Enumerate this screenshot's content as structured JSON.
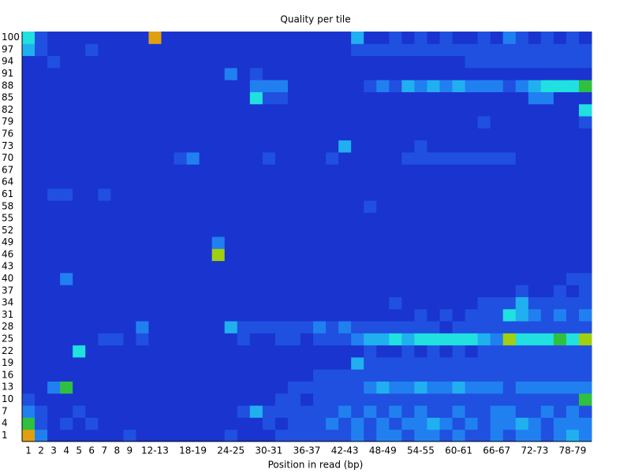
{
  "chart_data": {
    "type": "heatmap",
    "title": "Quality per tile",
    "x_label": "Position in read (bp)",
    "categories": [
      "1",
      "2",
      "3",
      "4",
      "5",
      "6",
      "7",
      "8",
      "9",
      null,
      "12-13",
      null,
      null,
      "18-19",
      null,
      null,
      "24-25",
      null,
      null,
      "30-31",
      null,
      null,
      "36-37",
      null,
      null,
      "42-43",
      null,
      null,
      "48-49",
      null,
      null,
      "54-55",
      null,
      null,
      "60-61",
      null,
      null,
      "66-67",
      null,
      null,
      "72-73",
      null,
      null,
      "78-79",
      null
    ],
    "y_categories": [
      "1",
      "4",
      "7",
      "10",
      "13",
      "16",
      "19",
      "22",
      "25",
      "28",
      "31",
      "34",
      "37",
      "40",
      "43",
      "46",
      "49",
      "52",
      "55",
      "58",
      "61",
      "64",
      "67",
      "70",
      "73",
      "76",
      "79",
      "82",
      "85",
      "88",
      "91",
      "94",
      "97",
      "100"
    ],
    "zlim": [
      0,
      10
    ],
    "colorscale": [
      "#1020c0",
      "#1a34d0",
      "#2050e0",
      "#2080f0",
      "#20b0f0",
      "#20e0e0",
      "#30c040",
      "#a0d010",
      "#e0c000",
      "#e0a010",
      "#f07000"
    ],
    "values": [
      [
        9,
        3,
        1,
        1,
        1,
        1,
        1,
        1,
        2,
        1,
        1,
        1,
        1,
        1,
        1,
        1,
        2,
        1,
        1,
        1,
        2,
        2,
        2,
        2,
        2,
        2,
        3,
        2,
        3,
        3,
        2,
        3,
        3,
        2,
        3,
        2,
        2,
        3,
        2,
        3,
        3,
        2,
        3,
        4,
        3
      ],
      [
        6,
        2,
        1,
        2,
        1,
        2,
        1,
        1,
        1,
        1,
        1,
        1,
        1,
        1,
        1,
        1,
        1,
        1,
        1,
        2,
        1,
        2,
        2,
        2,
        3,
        2,
        3,
        2,
        3,
        2,
        3,
        3,
        4,
        3,
        2,
        3,
        2,
        3,
        3,
        4,
        3,
        2,
        3,
        3,
        3
      ],
      [
        3,
        2,
        1,
        1,
        2,
        1,
        1,
        1,
        1,
        1,
        1,
        1,
        1,
        1,
        1,
        1,
        1,
        2,
        4,
        2,
        2,
        2,
        2,
        2,
        2,
        3,
        2,
        3,
        2,
        3,
        2,
        3,
        2,
        2,
        3,
        2,
        2,
        3,
        3,
        2,
        2,
        3,
        2,
        3,
        2
      ],
      [
        2,
        1,
        1,
        1,
        1,
        1,
        1,
        1,
        1,
        1,
        1,
        1,
        1,
        1,
        1,
        1,
        1,
        1,
        1,
        1,
        2,
        2,
        1,
        2,
        2,
        2,
        2,
        2,
        2,
        2,
        2,
        2,
        2,
        2,
        2,
        2,
        2,
        2,
        2,
        2,
        2,
        2,
        2,
        2,
        6
      ],
      [
        1,
        1,
        3,
        6,
        1,
        1,
        1,
        1,
        1,
        1,
        1,
        1,
        1,
        1,
        1,
        1,
        1,
        1,
        1,
        1,
        1,
        2,
        2,
        2,
        2,
        2,
        2,
        3,
        4,
        3,
        3,
        4,
        3,
        3,
        4,
        3,
        3,
        3,
        2,
        3,
        3,
        3,
        3,
        3,
        3
      ],
      [
        1,
        1,
        1,
        1,
        1,
        1,
        1,
        1,
        1,
        1,
        1,
        1,
        1,
        1,
        1,
        1,
        1,
        1,
        1,
        1,
        1,
        1,
        1,
        2,
        2,
        2,
        2,
        2,
        2,
        2,
        2,
        2,
        2,
        2,
        2,
        2,
        2,
        2,
        2,
        2,
        2,
        2,
        2,
        2,
        2
      ],
      [
        1,
        1,
        1,
        1,
        1,
        1,
        1,
        1,
        1,
        1,
        1,
        1,
        1,
        1,
        1,
        1,
        1,
        1,
        1,
        1,
        1,
        1,
        1,
        1,
        1,
        1,
        4,
        2,
        2,
        2,
        2,
        2,
        2,
        2,
        2,
        2,
        2,
        2,
        2,
        2,
        2,
        2,
        2,
        2,
        2
      ],
      [
        1,
        1,
        1,
        1,
        5,
        1,
        1,
        1,
        1,
        1,
        1,
        1,
        1,
        1,
        1,
        1,
        1,
        1,
        1,
        1,
        1,
        1,
        1,
        1,
        1,
        1,
        1,
        2,
        1,
        1,
        2,
        1,
        2,
        1,
        2,
        1,
        2,
        2,
        2,
        2,
        2,
        2,
        2,
        2,
        2
      ],
      [
        1,
        1,
        1,
        1,
        1,
        1,
        2,
        2,
        1,
        2,
        1,
        1,
        1,
        1,
        1,
        1,
        1,
        2,
        1,
        1,
        2,
        2,
        1,
        2,
        2,
        2,
        3,
        4,
        4,
        5,
        4,
        5,
        5,
        5,
        5,
        5,
        4,
        3,
        7,
        5,
        5,
        5,
        6,
        5,
        7
      ],
      [
        1,
        1,
        1,
        1,
        1,
        1,
        1,
        1,
        1,
        3,
        1,
        1,
        1,
        1,
        1,
        1,
        4,
        2,
        2,
        2,
        2,
        2,
        2,
        3,
        2,
        3,
        2,
        2,
        2,
        2,
        2,
        2,
        2,
        1,
        2,
        2,
        2,
        2,
        2,
        2,
        2,
        2,
        2,
        2,
        2
      ],
      [
        1,
        1,
        1,
        1,
        1,
        1,
        1,
        1,
        1,
        1,
        1,
        1,
        1,
        1,
        1,
        1,
        1,
        1,
        1,
        1,
        1,
        1,
        1,
        1,
        1,
        1,
        1,
        1,
        1,
        1,
        1,
        2,
        1,
        2,
        1,
        2,
        2,
        2,
        5,
        4,
        3,
        2,
        3,
        2,
        3
      ],
      [
        1,
        1,
        1,
        1,
        1,
        1,
        1,
        1,
        1,
        1,
        1,
        1,
        1,
        1,
        1,
        1,
        1,
        1,
        1,
        1,
        1,
        1,
        1,
        1,
        1,
        1,
        1,
        1,
        1,
        2,
        1,
        1,
        1,
        1,
        1,
        1,
        2,
        2,
        2,
        4,
        2,
        2,
        2,
        2,
        2
      ],
      [
        1,
        1,
        1,
        1,
        1,
        1,
        1,
        1,
        1,
        1,
        1,
        1,
        1,
        1,
        1,
        1,
        1,
        1,
        1,
        1,
        1,
        1,
        1,
        1,
        1,
        1,
        1,
        1,
        1,
        1,
        1,
        1,
        1,
        1,
        1,
        1,
        1,
        1,
        1,
        2,
        1,
        1,
        2,
        1,
        2
      ],
      [
        1,
        1,
        1,
        3,
        1,
        1,
        1,
        1,
        1,
        1,
        1,
        1,
        1,
        1,
        1,
        1,
        1,
        1,
        1,
        1,
        1,
        1,
        1,
        1,
        1,
        1,
        1,
        1,
        1,
        1,
        1,
        1,
        1,
        1,
        1,
        1,
        1,
        1,
        1,
        1,
        1,
        1,
        1,
        2,
        2
      ],
      [
        1,
        1,
        1,
        1,
        1,
        1,
        1,
        1,
        1,
        1,
        1,
        1,
        1,
        1,
        1,
        1,
        1,
        1,
        1,
        1,
        1,
        1,
        1,
        1,
        1,
        1,
        1,
        1,
        1,
        1,
        1,
        1,
        1,
        1,
        1,
        1,
        1,
        1,
        1,
        1,
        1,
        1,
        1,
        1,
        1
      ],
      [
        1,
        1,
        1,
        1,
        1,
        1,
        1,
        1,
        1,
        1,
        1,
        1,
        1,
        1,
        1,
        7,
        1,
        1,
        1,
        1,
        1,
        1,
        1,
        1,
        1,
        1,
        1,
        1,
        1,
        1,
        1,
        1,
        1,
        1,
        1,
        1,
        1,
        1,
        1,
        1,
        1,
        1,
        1,
        1,
        1
      ],
      [
        1,
        1,
        1,
        1,
        1,
        1,
        1,
        1,
        1,
        1,
        1,
        1,
        1,
        1,
        1,
        3,
        1,
        1,
        1,
        1,
        1,
        1,
        1,
        1,
        1,
        1,
        1,
        1,
        1,
        1,
        1,
        1,
        1,
        1,
        1,
        1,
        1,
        1,
        1,
        1,
        1,
        1,
        1,
        1,
        1
      ],
      [
        1,
        1,
        1,
        1,
        1,
        1,
        1,
        1,
        1,
        1,
        1,
        1,
        1,
        1,
        1,
        1,
        1,
        1,
        1,
        1,
        1,
        1,
        1,
        1,
        1,
        1,
        1,
        1,
        1,
        1,
        1,
        1,
        1,
        1,
        1,
        1,
        1,
        1,
        1,
        1,
        1,
        1,
        1,
        1,
        1
      ],
      [
        1,
        1,
        1,
        1,
        1,
        1,
        1,
        1,
        1,
        1,
        1,
        1,
        1,
        1,
        1,
        1,
        1,
        1,
        1,
        1,
        1,
        1,
        1,
        1,
        1,
        1,
        1,
        1,
        1,
        1,
        1,
        1,
        1,
        1,
        1,
        1,
        1,
        1,
        1,
        1,
        1,
        1,
        1,
        1,
        1
      ],
      [
        1,
        1,
        1,
        1,
        1,
        1,
        1,
        1,
        1,
        1,
        1,
        1,
        1,
        1,
        1,
        1,
        1,
        1,
        1,
        1,
        1,
        1,
        1,
        1,
        1,
        1,
        1,
        2,
        1,
        1,
        1,
        1,
        1,
        1,
        1,
        1,
        1,
        1,
        1,
        1,
        1,
        1,
        1,
        1,
        1
      ],
      [
        1,
        1,
        2,
        2,
        1,
        1,
        2,
        1,
        1,
        1,
        1,
        1,
        1,
        1,
        1,
        1,
        1,
        1,
        1,
        1,
        1,
        1,
        1,
        1,
        1,
        1,
        1,
        1,
        1,
        1,
        1,
        1,
        1,
        1,
        1,
        1,
        1,
        1,
        1,
        1,
        1,
        1,
        1,
        1,
        1
      ],
      [
        1,
        1,
        1,
        1,
        1,
        1,
        1,
        1,
        1,
        1,
        1,
        1,
        1,
        1,
        1,
        1,
        1,
        1,
        1,
        1,
        1,
        1,
        1,
        1,
        1,
        1,
        1,
        1,
        1,
        1,
        1,
        1,
        1,
        1,
        1,
        1,
        1,
        1,
        1,
        1,
        1,
        1,
        1,
        1,
        1
      ],
      [
        1,
        1,
        1,
        1,
        1,
        1,
        1,
        1,
        1,
        1,
        1,
        1,
        1,
        1,
        1,
        1,
        1,
        1,
        1,
        1,
        1,
        1,
        1,
        1,
        1,
        1,
        1,
        1,
        1,
        1,
        1,
        1,
        1,
        1,
        1,
        1,
        1,
        1,
        1,
        1,
        1,
        1,
        1,
        1,
        1
      ],
      [
        1,
        1,
        1,
        1,
        1,
        1,
        1,
        1,
        1,
        1,
        1,
        1,
        2,
        3,
        1,
        1,
        1,
        1,
        1,
        2,
        1,
        1,
        1,
        1,
        2,
        1,
        1,
        1,
        1,
        1,
        2,
        2,
        2,
        2,
        2,
        2,
        2,
        2,
        2,
        1,
        1,
        1,
        1,
        1,
        1
      ],
      [
        1,
        1,
        1,
        1,
        1,
        1,
        1,
        1,
        1,
        1,
        1,
        1,
        1,
        1,
        1,
        1,
        1,
        1,
        1,
        1,
        1,
        1,
        1,
        1,
        1,
        4,
        1,
        1,
        1,
        1,
        1,
        2,
        1,
        1,
        1,
        1,
        1,
        1,
        1,
        1,
        1,
        1,
        1,
        1,
        1
      ],
      [
        1,
        1,
        1,
        1,
        1,
        1,
        1,
        1,
        1,
        1,
        1,
        1,
        1,
        1,
        1,
        1,
        1,
        1,
        1,
        1,
        1,
        1,
        1,
        1,
        1,
        1,
        1,
        1,
        1,
        1,
        1,
        1,
        1,
        1,
        1,
        1,
        1,
        1,
        1,
        1,
        1,
        1,
        1,
        1,
        1
      ],
      [
        1,
        1,
        1,
        1,
        1,
        1,
        1,
        1,
        1,
        1,
        1,
        1,
        1,
        1,
        1,
        1,
        1,
        1,
        1,
        1,
        1,
        1,
        1,
        1,
        1,
        1,
        1,
        1,
        1,
        1,
        1,
        1,
        1,
        1,
        1,
        1,
        2,
        1,
        1,
        1,
        1,
        1,
        1,
        1,
        2
      ],
      [
        1,
        1,
        1,
        1,
        1,
        1,
        1,
        1,
        1,
        1,
        1,
        1,
        1,
        1,
        1,
        1,
        1,
        1,
        1,
        1,
        1,
        1,
        1,
        1,
        1,
        1,
        1,
        1,
        1,
        1,
        1,
        1,
        1,
        1,
        1,
        1,
        1,
        1,
        1,
        1,
        1,
        1,
        1,
        1,
        5
      ],
      [
        1,
        1,
        1,
        1,
        1,
        1,
        1,
        1,
        1,
        1,
        1,
        1,
        1,
        1,
        1,
        1,
        1,
        1,
        5,
        2,
        2,
        1,
        1,
        1,
        1,
        1,
        1,
        1,
        1,
        1,
        1,
        1,
        1,
        1,
        1,
        1,
        1,
        1,
        1,
        1,
        3,
        3,
        1,
        1,
        1
      ],
      [
        1,
        1,
        1,
        1,
        1,
        1,
        1,
        1,
        1,
        1,
        1,
        1,
        1,
        1,
        1,
        1,
        1,
        1,
        3,
        3,
        3,
        1,
        1,
        1,
        1,
        1,
        1,
        2,
        3,
        2,
        4,
        3,
        4,
        3,
        4,
        3,
        3,
        3,
        2,
        3,
        4,
        5,
        5,
        5,
        6
      ],
      [
        1,
        1,
        1,
        1,
        1,
        1,
        1,
        1,
        1,
        1,
        1,
        1,
        1,
        1,
        1,
        1,
        3,
        1,
        2,
        1,
        1,
        1,
        1,
        1,
        1,
        1,
        1,
        1,
        1,
        1,
        1,
        1,
        1,
        1,
        1,
        1,
        1,
        1,
        1,
        1,
        1,
        1,
        1,
        1,
        1
      ],
      [
        1,
        1,
        2,
        1,
        1,
        1,
        1,
        1,
        1,
        1,
        1,
        1,
        1,
        1,
        1,
        1,
        1,
        1,
        1,
        1,
        1,
        1,
        1,
        1,
        1,
        1,
        1,
        1,
        1,
        1,
        1,
        1,
        1,
        1,
        1,
        2,
        2,
        2,
        2,
        2,
        2,
        2,
        2,
        2,
        2
      ],
      [
        4,
        2,
        1,
        1,
        1,
        2,
        1,
        1,
        1,
        1,
        1,
        1,
        1,
        1,
        1,
        1,
        1,
        1,
        1,
        1,
        1,
        1,
        1,
        1,
        1,
        1,
        2,
        2,
        2,
        2,
        2,
        2,
        2,
        2,
        2,
        2,
        2,
        2,
        2,
        2,
        2,
        2,
        2,
        2,
        2
      ],
      [
        5,
        2,
        1,
        1,
        1,
        1,
        1,
        1,
        1,
        1,
        9,
        1,
        1,
        1,
        1,
        1,
        1,
        1,
        1,
        1,
        1,
        1,
        1,
        1,
        1,
        1,
        4,
        1,
        1,
        2,
        1,
        2,
        1,
        2,
        1,
        1,
        2,
        1,
        3,
        2,
        1,
        2,
        1,
        2,
        1
      ]
    ]
  }
}
